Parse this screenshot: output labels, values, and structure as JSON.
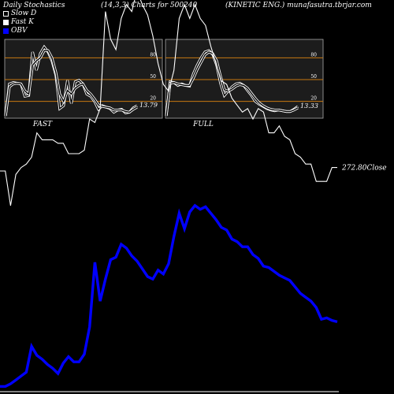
{
  "header": {
    "title": "Daily Stochastics",
    "params": "(14,3,3) Charts for 500240",
    "site": "(KINETIC ENG.) munafasutra.tbrjar.com"
  },
  "legend": [
    {
      "label": "Slow  D",
      "color": "#ffffff",
      "style": "outline"
    },
    {
      "label": "Fast K",
      "color": "#ffffff",
      "style": "filled"
    },
    {
      "label": "OBV",
      "color": "#0000ff",
      "style": "filled"
    }
  ],
  "chart_data": [
    {
      "type": "line",
      "name": "stochastic-fast",
      "xlabel": "FAST",
      "ylim": [
        0,
        100
      ],
      "levels": [
        20,
        50,
        80
      ],
      "yticks": [
        20,
        50,
        80
      ],
      "last_value_label": "13.79",
      "grid": false,
      "series": [
        {
          "name": "Fast K",
          "values": [
            0,
            44,
            46,
            45,
            44,
            27,
            28,
            88,
            63,
            86,
            95,
            88,
            76,
            56,
            10,
            14,
            49,
            17,
            47,
            49,
            44,
            30,
            27,
            20,
            9,
            14,
            12,
            10,
            5,
            8,
            9,
            4,
            5,
            11,
            14
          ]
        },
        {
          "name": "Slow D",
          "values": [
            0,
            40,
            44,
            45,
            44,
            34,
            30,
            70,
            76,
            80,
            90,
            90,
            80,
            60,
            30,
            20,
            35,
            30,
            38,
            42,
            44,
            35,
            30,
            23,
            15,
            13,
            12,
            11,
            8,
            8,
            8,
            6,
            5,
            9,
            12
          ]
        }
      ]
    },
    {
      "type": "line",
      "name": "stochastic-full",
      "xlabel": "FULL",
      "ylim": [
        0,
        100
      ],
      "levels": [
        20,
        50,
        80
      ],
      "yticks": [
        20,
        50,
        80
      ],
      "last_value_label": "13.33",
      "grid": false,
      "series": [
        {
          "name": "Full K",
          "values": [
            0,
            47,
            46,
            42,
            44,
            42,
            41,
            58,
            70,
            80,
            88,
            90,
            85,
            70,
            45,
            28,
            34,
            40,
            44,
            45,
            42,
            35,
            28,
            20,
            16,
            13,
            10,
            8,
            7,
            8,
            7,
            6,
            6,
            9,
            13
          ]
        },
        {
          "name": "Full D",
          "values": [
            0,
            45,
            46,
            44,
            43,
            42,
            42,
            52,
            64,
            74,
            84,
            88,
            86,
            76,
            55,
            36,
            34,
            37,
            41,
            43,
            42,
            38,
            31,
            24,
            18,
            14,
            11,
            9,
            8,
            8,
            7,
            6,
            6,
            8,
            11
          ]
        }
      ]
    },
    {
      "type": "line",
      "name": "price-and-obv",
      "close_label": "272.80Close",
      "grid": false,
      "series": [
        {
          "name": "Close",
          "values": [
            272,
            272,
            262,
            271,
            273,
            274,
            276,
            283,
            281,
            281,
            281,
            280,
            280,
            277,
            277,
            277,
            278,
            287,
            286,
            290,
            318,
            310,
            307,
            316,
            320,
            318,
            324,
            320,
            317,
            311,
            303,
            297,
            295,
            301,
            316,
            320,
            316,
            320,
            316,
            314,
            308,
            303,
            298,
            297,
            293,
            291,
            289,
            290,
            287,
            290,
            289,
            283,
            283,
            285,
            282,
            281,
            277,
            276,
            274,
            274,
            269,
            269,
            269,
            273,
            273
          ]
        },
        {
          "name": "OBV",
          "values": [
            1,
            1,
            3,
            6,
            9,
            12,
            32,
            25,
            22,
            18,
            15,
            11,
            19,
            24,
            20,
            20,
            26,
            47,
            97,
            67,
            84,
            99,
            101,
            111,
            108,
            102,
            98,
            92,
            86,
            84,
            91,
            88,
            96,
            117,
            135,
            123,
            136,
            141,
            138,
            140,
            135,
            130,
            124,
            122,
            115,
            113,
            109,
            109,
            103,
            100,
            94,
            93,
            90,
            87,
            85,
            83,
            78,
            73,
            70,
            67,
            62,
            53,
            54,
            52,
            51
          ]
        }
      ]
    }
  ]
}
